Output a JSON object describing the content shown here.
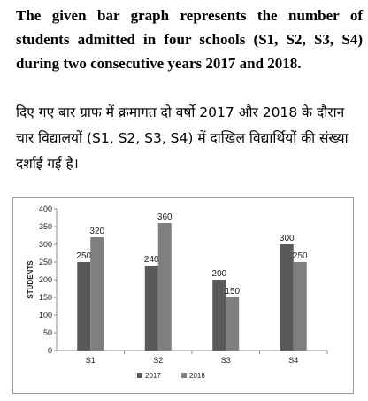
{
  "question": {
    "english": "The given bar graph represents the number of students admitted in four schools (S1, S2, S3, S4) during two consecutive years 2017 and 2018.",
    "hindi": "दिए गए बार ग्राफ में क्रमागत दो वर्षो 2017 और 2018 के दौरान चार विद्यालयों (S1, S2, S3, S4) में दाखिल विद्यार्थियों की संख्या दर्शाई गई है।"
  },
  "chart_data": {
    "type": "bar",
    "categories": [
      "S1",
      "S2",
      "S3",
      "S4"
    ],
    "series": [
      {
        "name": "2017",
        "values": [
          250,
          240,
          200,
          300
        ],
        "color": "#595959"
      },
      {
        "name": "2018",
        "values": [
          320,
          360,
          150,
          250
        ],
        "color": "#7f7f7f"
      }
    ],
    "ylabel": "STUDENTS",
    "ylim": [
      0,
      400
    ],
    "yticks": [
      0,
      50,
      100,
      150,
      200,
      250,
      300,
      350,
      400
    ],
    "grid": false,
    "legend": "bottom"
  }
}
